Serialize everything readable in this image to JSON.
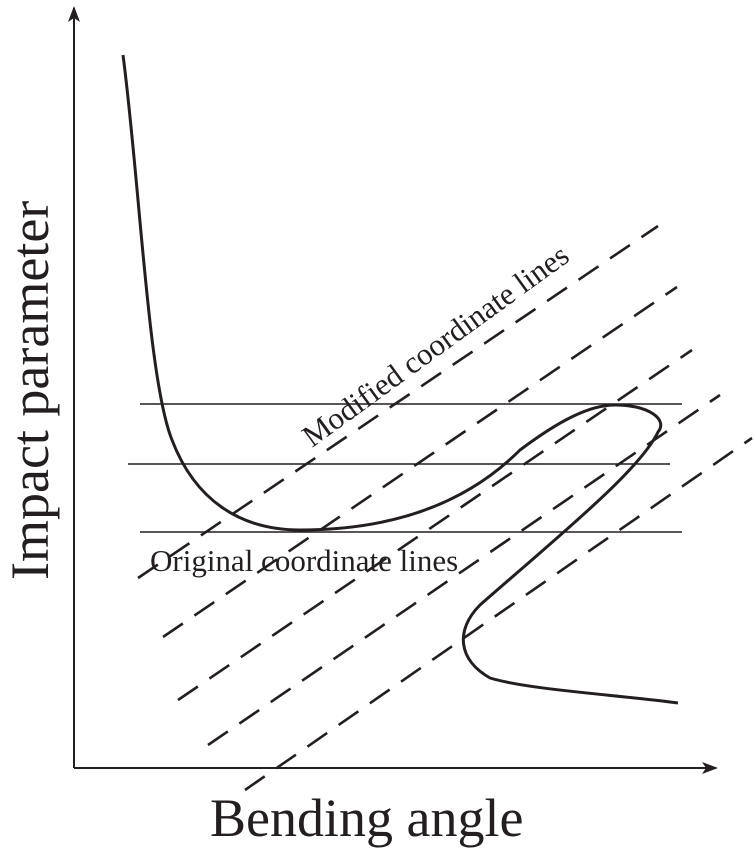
{
  "axes": {
    "x_label": "Bending angle",
    "y_label": "Impact parameter"
  },
  "annotations": {
    "original_lines": "Original coordinate lines",
    "modified_lines": "Modified coordinate lines"
  },
  "colors": {
    "ink": "#231f20",
    "background": "#ffffff"
  }
}
